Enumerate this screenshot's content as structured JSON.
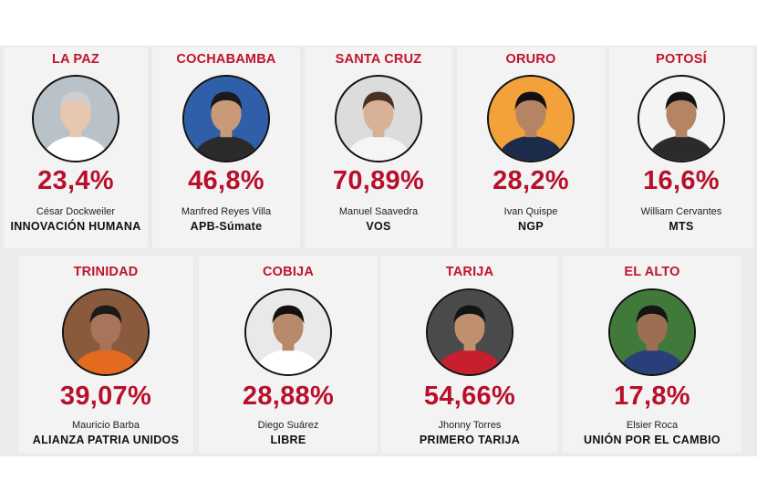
{
  "row1": [
    {
      "city": "LA PAZ",
      "pct": "23,4%",
      "name": "César Dockweiler",
      "party": "INNOVACIÓN HUMANA",
      "bg": "#b9c2c8",
      "skin": "#e8c7b0",
      "hair": "#cfcfcf",
      "shirt": "#ffffff"
    },
    {
      "city": "COCHABAMBA",
      "pct": "46,8%",
      "name": "Manfred Reyes Villa",
      "party": "APB-Súmate",
      "bg": "#2f5fa8",
      "skin": "#c99a78",
      "hair": "#1a1a1a",
      "shirt": "#2a2a2a"
    },
    {
      "city": "SANTA CRUZ",
      "pct": "70,89%",
      "name": "Manuel Saavedra",
      "party": "VOS",
      "bg": "#dcdcdc",
      "skin": "#d9b196",
      "hair": "#4a3222",
      "shirt": "#f5f5f5"
    },
    {
      "city": "ORURO",
      "pct": "28,2%",
      "name": "Ivan Quispe",
      "party": "NGP",
      "bg": "#f2a13b",
      "skin": "#b58463",
      "hair": "#111111",
      "shirt": "#1c2b4a"
    },
    {
      "city": "POTOSÍ",
      "pct": "16,6%",
      "name": "William Cervantes",
      "party": "MTS",
      "bg": "#f4f4f4",
      "skin": "#b58463",
      "hair": "#141414",
      "shirt": "#2b2b2b"
    }
  ],
  "row2": [
    {
      "city": "TRINIDAD",
      "pct": "39,07%",
      "name": "Mauricio Barba",
      "party": "ALIANZA PATRIA UNIDOS",
      "bg": "#8a5a3c",
      "skin": "#a8755a",
      "hair": "#1a1a1a",
      "shirt": "#e36a1e"
    },
    {
      "city": "COBIJA",
      "pct": "28,88%",
      "name": "Diego Suárez",
      "party": "LIBRE",
      "bg": "#e9e9e9",
      "skin": "#b8896a",
      "hair": "#111111",
      "shirt": "#ffffff"
    },
    {
      "city": "TARIJA",
      "pct": "54,66%",
      "name": "Jhonny Torres",
      "party": "PRIMERO TARIJA",
      "bg": "#4a4a4a",
      "skin": "#c08f6e",
      "hair": "#141414",
      "shirt": "#c71f2d"
    },
    {
      "city": "EL ALTO",
      "pct": "17,8%",
      "name": "Elsier Roca",
      "party": "UNIÓN POR EL CAMBIO",
      "bg": "#3f7a3a",
      "skin": "#9e6e52",
      "hair": "#151515",
      "shirt": "#2a3f7a"
    }
  ]
}
